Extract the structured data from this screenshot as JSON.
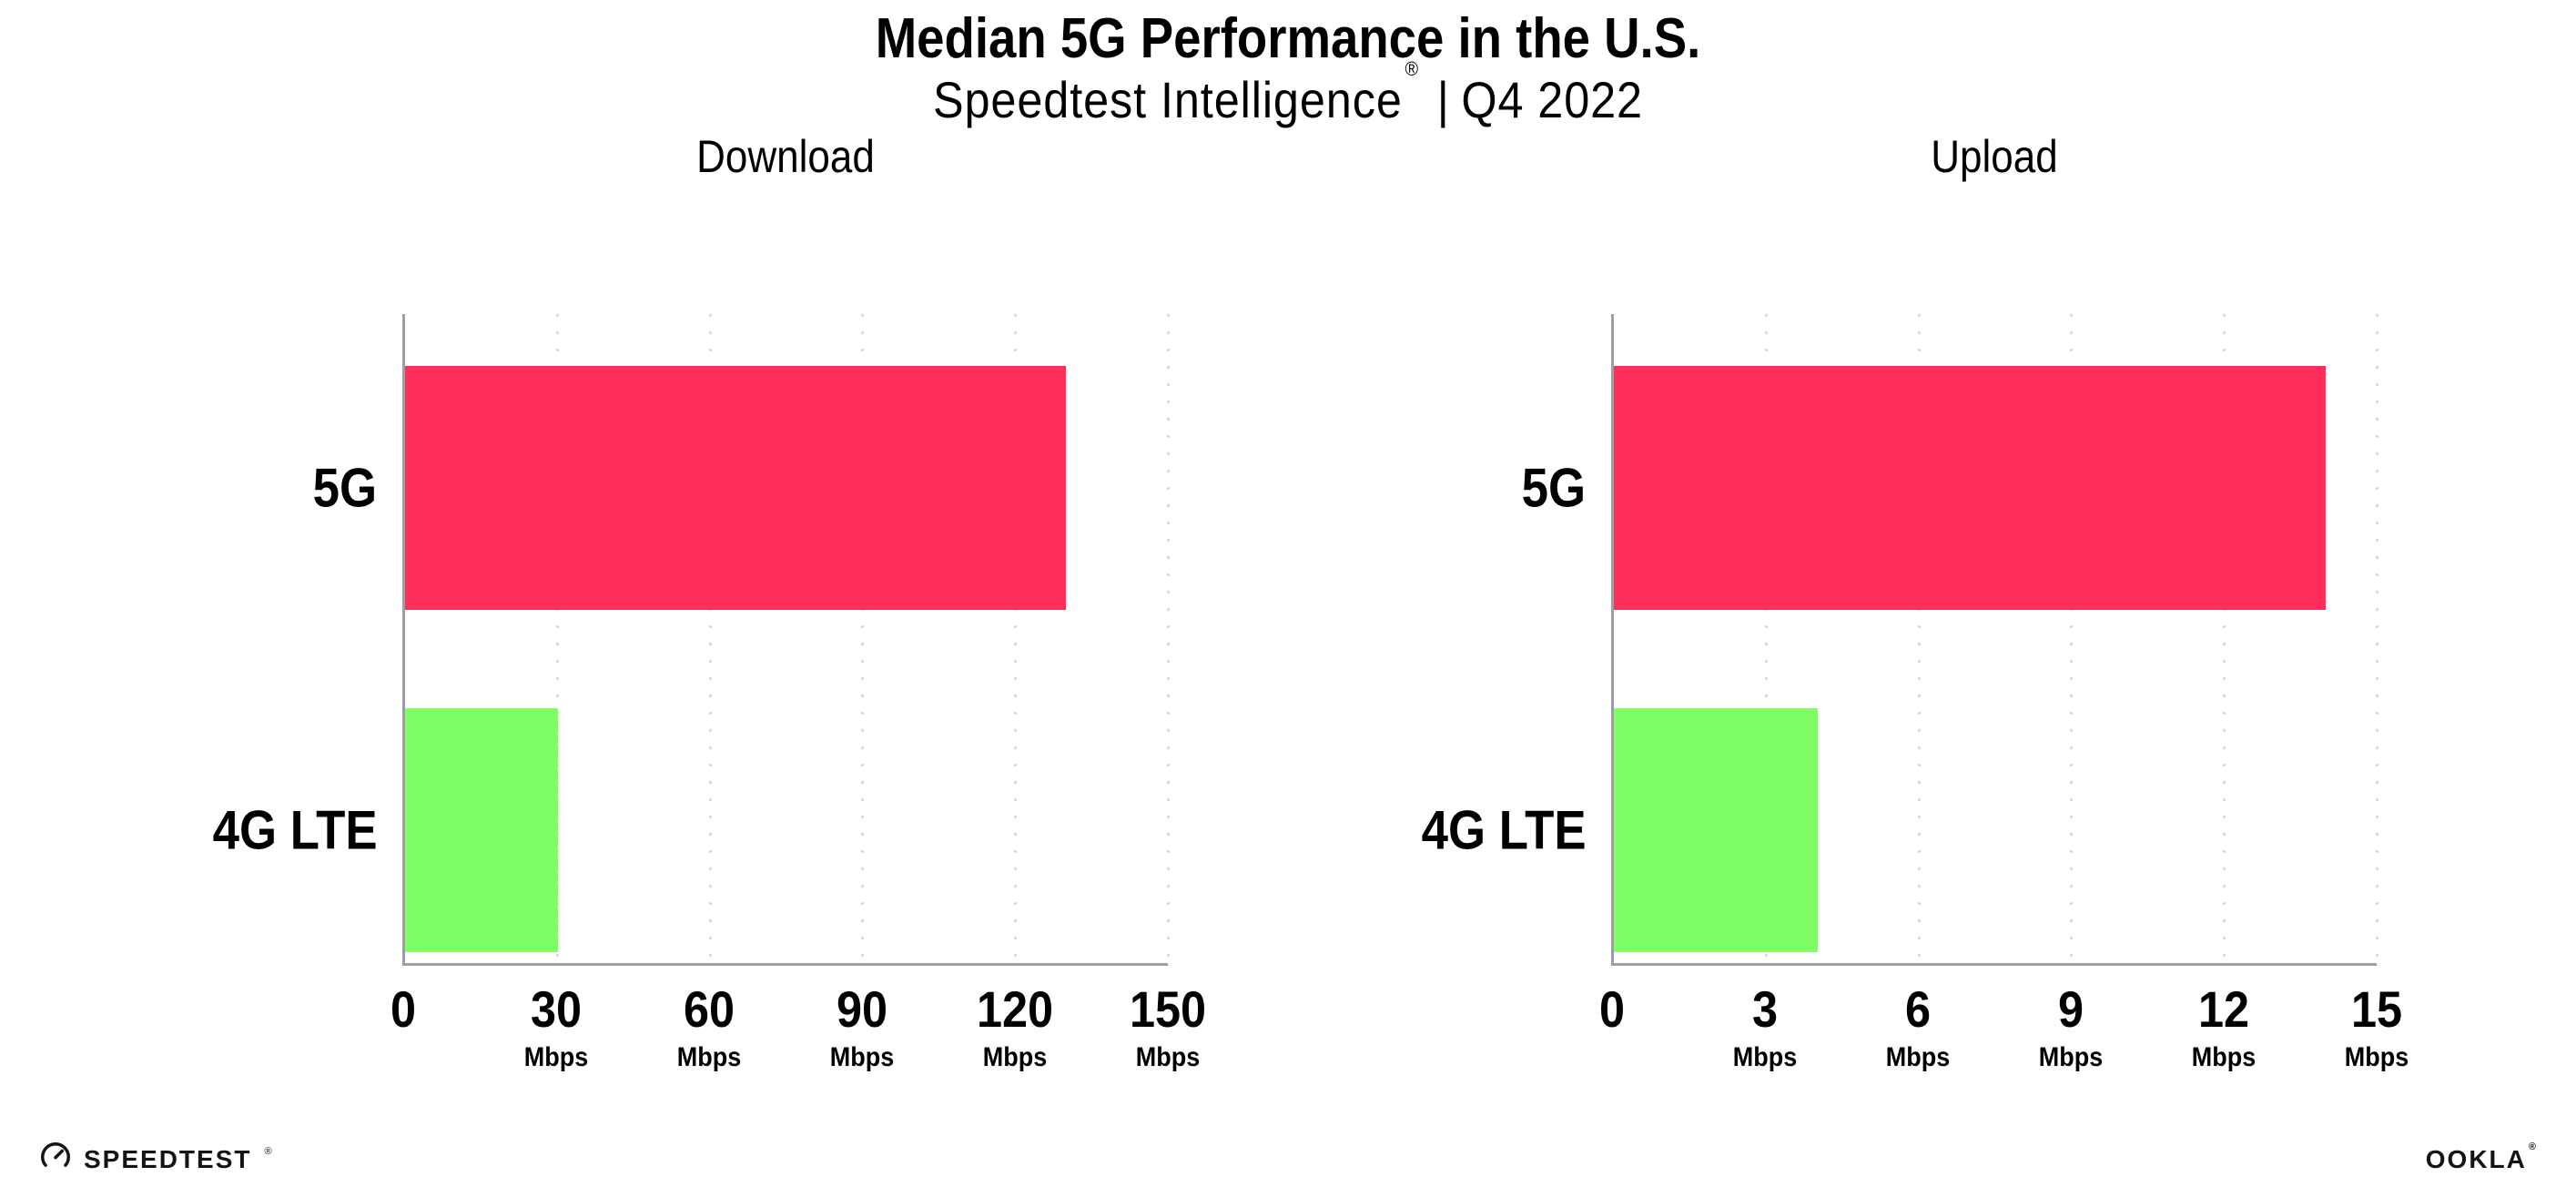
{
  "header": {
    "title": "Median 5G Performance in the U.S.",
    "subtitle_brand": "Speedtest Intelligence",
    "subtitle_mark": "®",
    "subtitle_sep": "|",
    "subtitle_period": "Q4 2022"
  },
  "chart_data": [
    {
      "type": "bar",
      "orientation": "horizontal",
      "title": "Download",
      "categories": [
        "5G",
        "4G LTE"
      ],
      "values": [
        130,
        30
      ],
      "unit": "Mbps",
      "xlabel": "",
      "ylabel": "",
      "xlim": [
        0,
        150
      ],
      "xticks": [
        0,
        30,
        60,
        90,
        120,
        150
      ],
      "bar_colors": [
        "#FF2D5A",
        "#80FE66"
      ],
      "grid": "vertical-dotted",
      "legend": "none"
    },
    {
      "type": "bar",
      "orientation": "horizontal",
      "title": "Upload",
      "categories": [
        "5G",
        "4G LTE"
      ],
      "values": [
        14,
        4
      ],
      "unit": "Mbps",
      "xlabel": "",
      "ylabel": "",
      "xlim": [
        0,
        15
      ],
      "xticks": [
        0,
        3,
        6,
        9,
        12,
        15
      ],
      "bar_colors": [
        "#FF2D5A",
        "#80FE66"
      ],
      "grid": "vertical-dotted",
      "legend": "none"
    }
  ],
  "footer": {
    "speedtest_text": "SPEEDTEST",
    "speedtest_mark": "®",
    "ookla_text": "OOKLA",
    "ookla_mark": "®"
  },
  "colors": {
    "bar_5g": "#FF2D5A",
    "bar_4g_lte": "#80FE66",
    "axis": "#9e9ea4",
    "grid_dots": "#dadae4",
    "text": "#000000"
  }
}
